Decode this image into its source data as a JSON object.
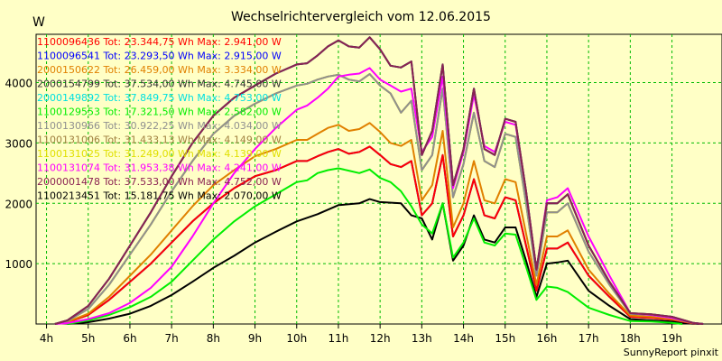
{
  "chart_data": {
    "type": "line",
    "title": "Wechselrichtervergleich vom 12.06.2015",
    "ylabel": "W",
    "credit": "SunnyReport pinxit",
    "x_ticks": [
      "4h",
      "5h",
      "6h",
      "7h",
      "8h",
      "9h",
      "10h",
      "11h",
      "12h",
      "13h",
      "14h",
      "15h",
      "16h",
      "17h",
      "18h",
      "19h"
    ],
    "y_ticks": [
      1000,
      2000,
      3000,
      4000
    ],
    "xlim": [
      3.75,
      20.2
    ],
    "ylim": [
      0,
      4800
    ],
    "grid": true,
    "legend_position": "top-left",
    "series": [
      {
        "name": "1100096436 Tot: 23.344,75 Wh Max: 2.941,00 W",
        "color": "#ff0000",
        "group": "b"
      },
      {
        "name": "1100096541 Tot: 23.293,50 Wh Max: 2.915,00 W",
        "color": "#0000ff",
        "group": "b"
      },
      {
        "name": "2000150622 Tot: 26.459,00 Wh Max: 3.334,00 W",
        "color": "#e08000",
        "group": "c"
      },
      {
        "name": "2000154799 Tot: 37.534,00 Wh Max: 4.745,00 W",
        "color": "#333333",
        "group": "a"
      },
      {
        "name": "2000149892 Tot: 37.849,75 Wh Max: 4.753,00 W",
        "color": "#00e0e0",
        "group": "a"
      },
      {
        "name": "1100129553 Tot: 17.321,50 Wh Max: 2.582,00 W",
        "color": "#00ee00",
        "group": "e"
      },
      {
        "name": "1100130966 Tot: 30.922,25 Wh Max: 4.034,00 W",
        "color": "#909090",
        "group": "f"
      },
      {
        "name": "1100131006 Tot: 31.433,13 Wh Max: 4.149,00 W",
        "color": "#a08040",
        "group": "f"
      },
      {
        "name": "1100131025 Tot: 31.249,00 Wh Max: 4.139,00 W",
        "color": "#e0e000",
        "group": "f"
      },
      {
        "name": "1100131074 Tot: 31.953,38 Wh Max: 4.241,00 W",
        "color": "#ff00ff",
        "group": "g"
      },
      {
        "name": "2000001478 Tot: 37.533,00 Wh Max: 4.752,00 W",
        "color": "#8b2252",
        "group": "a"
      },
      {
        "name": "1100213451 Tot: 15.181,75 Wh Max: 2.070,00 W",
        "color": "#000000",
        "group": "d"
      }
    ],
    "profiles": {
      "a": [
        [
          4.2,
          0
        ],
        [
          4.5,
          60
        ],
        [
          5,
          300
        ],
        [
          5.5,
          750
        ],
        [
          6,
          1300
        ],
        [
          6.5,
          1850
        ],
        [
          7,
          2450
        ],
        [
          7.5,
          3000
        ],
        [
          8,
          3450
        ],
        [
          8.5,
          3750
        ],
        [
          9,
          3950
        ],
        [
          9.5,
          4150
        ],
        [
          10,
          4300
        ],
        [
          10.25,
          4320
        ],
        [
          10.5,
          4450
        ],
        [
          10.75,
          4600
        ],
        [
          11,
          4700
        ],
        [
          11.25,
          4600
        ],
        [
          11.5,
          4580
        ],
        [
          11.75,
          4750
        ],
        [
          12,
          4550
        ],
        [
          12.25,
          4280
        ],
        [
          12.5,
          4250
        ],
        [
          12.75,
          4350
        ],
        [
          13,
          2800
        ],
        [
          13.25,
          3200
        ],
        [
          13.5,
          4300
        ],
        [
          13.75,
          2300
        ],
        [
          14,
          2900
        ],
        [
          14.25,
          3900
        ],
        [
          14.5,
          2900
        ],
        [
          14.75,
          2800
        ],
        [
          15,
          3400
        ],
        [
          15.25,
          3350
        ],
        [
          15.5,
          2200
        ],
        [
          15.75,
          900
        ],
        [
          16,
          2000
        ],
        [
          16.25,
          2000
        ],
        [
          16.5,
          2150
        ],
        [
          17,
          1300
        ],
        [
          17.5,
          700
        ],
        [
          18,
          180
        ],
        [
          18.5,
          160
        ],
        [
          19,
          120
        ],
        [
          19.5,
          20
        ],
        [
          19.75,
          0
        ]
      ],
      "b": [
        [
          4.2,
          0
        ],
        [
          4.5,
          30
        ],
        [
          5,
          150
        ],
        [
          5.5,
          400
        ],
        [
          6,
          700
        ],
        [
          6.5,
          1000
        ],
        [
          7,
          1350
        ],
        [
          7.5,
          1700
        ],
        [
          8,
          2000
        ],
        [
          8.5,
          2250
        ],
        [
          9,
          2450
        ],
        [
          9.5,
          2550
        ],
        [
          10,
          2700
        ],
        [
          10.25,
          2700
        ],
        [
          10.5,
          2780
        ],
        [
          10.75,
          2850
        ],
        [
          11,
          2900
        ],
        [
          11.25,
          2820
        ],
        [
          11.5,
          2850
        ],
        [
          11.75,
          2940
        ],
        [
          12,
          2800
        ],
        [
          12.25,
          2650
        ],
        [
          12.5,
          2600
        ],
        [
          12.75,
          2700
        ],
        [
          13,
          1800
        ],
        [
          13.25,
          2000
        ],
        [
          13.5,
          2800
        ],
        [
          13.75,
          1450
        ],
        [
          14,
          1800
        ],
        [
          14.25,
          2400
        ],
        [
          14.5,
          1800
        ],
        [
          14.75,
          1750
        ],
        [
          15,
          2100
        ],
        [
          15.25,
          2050
        ],
        [
          15.5,
          1300
        ],
        [
          15.75,
          550
        ],
        [
          16,
          1250
        ],
        [
          16.25,
          1250
        ],
        [
          16.5,
          1350
        ],
        [
          17,
          800
        ],
        [
          17.5,
          450
        ],
        [
          18,
          120
        ],
        [
          18.5,
          100
        ],
        [
          19,
          70
        ],
        [
          19.5,
          10
        ],
        [
          19.75,
          0
        ]
      ],
      "c": [
        [
          4.2,
          0
        ],
        [
          4.5,
          35
        ],
        [
          5,
          170
        ],
        [
          5.5,
          450
        ],
        [
          6,
          800
        ],
        [
          6.5,
          1150
        ],
        [
          7,
          1550
        ],
        [
          7.5,
          1950
        ],
        [
          8,
          2300
        ],
        [
          8.5,
          2550
        ],
        [
          9,
          2780
        ],
        [
          9.5,
          2900
        ],
        [
          10,
          3050
        ],
        [
          10.25,
          3050
        ],
        [
          10.5,
          3150
        ],
        [
          10.75,
          3250
        ],
        [
          11,
          3300
        ],
        [
          11.25,
          3200
        ],
        [
          11.5,
          3230
        ],
        [
          11.75,
          3330
        ],
        [
          12,
          3180
        ],
        [
          12.25,
          3000
        ],
        [
          12.5,
          2950
        ],
        [
          12.75,
          3050
        ],
        [
          13,
          2050
        ],
        [
          13.25,
          2300
        ],
        [
          13.5,
          3200
        ],
        [
          13.75,
          1600
        ],
        [
          14,
          2000
        ],
        [
          14.25,
          2700
        ],
        [
          14.5,
          2050
        ],
        [
          14.75,
          2000
        ],
        [
          15,
          2400
        ],
        [
          15.25,
          2350
        ],
        [
          15.5,
          1500
        ],
        [
          15.75,
          650
        ],
        [
          16,
          1450
        ],
        [
          16.25,
          1450
        ],
        [
          16.5,
          1550
        ],
        [
          17,
          900
        ],
        [
          17.5,
          500
        ],
        [
          18,
          140
        ],
        [
          18.5,
          120
        ],
        [
          19,
          80
        ],
        [
          19.5,
          15
        ],
        [
          19.75,
          0
        ]
      ],
      "d": [
        [
          4.5,
          0
        ],
        [
          5,
          30
        ],
        [
          5.5,
          90
        ],
        [
          6,
          170
        ],
        [
          6.5,
          300
        ],
        [
          7,
          480
        ],
        [
          7.5,
          700
        ],
        [
          8,
          930
        ],
        [
          8.5,
          1130
        ],
        [
          9,
          1350
        ],
        [
          9.5,
          1530
        ],
        [
          10,
          1700
        ],
        [
          10.5,
          1820
        ],
        [
          11,
          1970
        ],
        [
          11.5,
          2000
        ],
        [
          11.75,
          2070
        ],
        [
          12,
          2020
        ],
        [
          12.5,
          2000
        ],
        [
          12.75,
          1800
        ],
        [
          13,
          1750
        ],
        [
          13.25,
          1400
        ],
        [
          13.5,
          2000
        ],
        [
          13.75,
          1050
        ],
        [
          14,
          1300
        ],
        [
          14.25,
          1800
        ],
        [
          14.5,
          1400
        ],
        [
          14.75,
          1350
        ],
        [
          15,
          1600
        ],
        [
          15.25,
          1600
        ],
        [
          15.5,
          1050
        ],
        [
          15.75,
          450
        ],
        [
          16,
          1000
        ],
        [
          16.25,
          1020
        ],
        [
          16.5,
          1050
        ],
        [
          17,
          550
        ],
        [
          17.5,
          300
        ],
        [
          18,
          80
        ],
        [
          18.5,
          60
        ],
        [
          19,
          40
        ],
        [
          19.5,
          5
        ],
        [
          19.75,
          0
        ]
      ],
      "e": [
        [
          4.5,
          0
        ],
        [
          5,
          60
        ],
        [
          5.5,
          150
        ],
        [
          6,
          280
        ],
        [
          6.5,
          450
        ],
        [
          7,
          700
        ],
        [
          7.5,
          1050
        ],
        [
          8,
          1400
        ],
        [
          8.5,
          1700
        ],
        [
          9,
          1950
        ],
        [
          9.5,
          2150
        ],
        [
          10,
          2350
        ],
        [
          10.25,
          2380
        ],
        [
          10.5,
          2500
        ],
        [
          10.75,
          2550
        ],
        [
          11,
          2580
        ],
        [
          11.25,
          2540
        ],
        [
          11.5,
          2500
        ],
        [
          11.75,
          2560
        ],
        [
          12,
          2420
        ],
        [
          12.25,
          2350
        ],
        [
          12.5,
          2200
        ],
        [
          12.75,
          1950
        ],
        [
          13,
          1650
        ],
        [
          13.25,
          1500
        ],
        [
          13.5,
          2000
        ],
        [
          13.75,
          1100
        ],
        [
          14,
          1350
        ],
        [
          14.25,
          1750
        ],
        [
          14.5,
          1350
        ],
        [
          14.75,
          1300
        ],
        [
          15,
          1500
        ],
        [
          15.25,
          1480
        ],
        [
          15.5,
          950
        ],
        [
          15.75,
          400
        ],
        [
          16,
          620
        ],
        [
          16.25,
          600
        ],
        [
          16.5,
          530
        ],
        [
          17,
          270
        ],
        [
          17.5,
          150
        ],
        [
          18,
          50
        ],
        [
          18.5,
          40
        ],
        [
          19,
          20
        ],
        [
          19.25,
          0
        ]
      ],
      "f": [
        [
          4.2,
          0
        ],
        [
          4.5,
          50
        ],
        [
          5,
          250
        ],
        [
          5.5,
          650
        ],
        [
          6,
          1150
        ],
        [
          6.5,
          1650
        ],
        [
          7,
          2200
        ],
        [
          7.5,
          2700
        ],
        [
          8,
          3150
        ],
        [
          8.5,
          3450
        ],
        [
          9,
          3650
        ],
        [
          9.5,
          3820
        ],
        [
          10,
          3950
        ],
        [
          10.25,
          3980
        ],
        [
          10.5,
          4050
        ],
        [
          10.75,
          4100
        ],
        [
          11,
          4130
        ],
        [
          11.25,
          4050
        ],
        [
          11.5,
          4020
        ],
        [
          11.75,
          4140
        ],
        [
          12,
          3950
        ],
        [
          12.25,
          3820
        ],
        [
          12.5,
          3500
        ],
        [
          12.75,
          3700
        ],
        [
          13,
          2550
        ],
        [
          13.25,
          2800
        ],
        [
          13.5,
          3900
        ],
        [
          13.75,
          2100
        ],
        [
          14,
          2650
        ],
        [
          14.25,
          3500
        ],
        [
          14.5,
          2700
        ],
        [
          14.75,
          2600
        ],
        [
          15,
          3150
        ],
        [
          15.25,
          3100
        ],
        [
          15.5,
          2000
        ],
        [
          15.75,
          800
        ],
        [
          16,
          1850
        ],
        [
          16.25,
          1850
        ],
        [
          16.5,
          2000
        ],
        [
          17,
          1200
        ],
        [
          17.5,
          650
        ],
        [
          18,
          170
        ],
        [
          18.5,
          150
        ],
        [
          19,
          100
        ],
        [
          19.5,
          20
        ],
        [
          19.75,
          0
        ]
      ],
      "g": [
        [
          4.2,
          0
        ],
        [
          4.5,
          15
        ],
        [
          5,
          80
        ],
        [
          5.5,
          180
        ],
        [
          6,
          350
        ],
        [
          6.5,
          600
        ],
        [
          7,
          950
        ],
        [
          7.5,
          1450
        ],
        [
          8,
          2000
        ],
        [
          8.5,
          2500
        ],
        [
          9,
          2900
        ],
        [
          9.5,
          3250
        ],
        [
          10,
          3550
        ],
        [
          10.25,
          3620
        ],
        [
          10.5,
          3750
        ],
        [
          10.75,
          3900
        ],
        [
          11,
          4100
        ],
        [
          11.25,
          4130
        ],
        [
          11.5,
          4150
        ],
        [
          11.75,
          4240
        ],
        [
          12,
          4050
        ],
        [
          12.25,
          3950
        ],
        [
          12.5,
          3850
        ],
        [
          12.75,
          3900
        ],
        [
          13,
          2850
        ],
        [
          13.25,
          3100
        ],
        [
          13.5,
          4100
        ],
        [
          13.75,
          2250
        ],
        [
          14,
          2850
        ],
        [
          14.25,
          3800
        ],
        [
          14.5,
          2950
        ],
        [
          14.75,
          2850
        ],
        [
          15,
          3350
        ],
        [
          15.25,
          3300
        ],
        [
          15.5,
          2200
        ],
        [
          15.75,
          900
        ],
        [
          16,
          2050
        ],
        [
          16.25,
          2100
        ],
        [
          16.5,
          2250
        ],
        [
          17,
          1450
        ],
        [
          17.5,
          800
        ],
        [
          18,
          180
        ],
        [
          18.5,
          150
        ],
        [
          19,
          100
        ],
        [
          19.5,
          20
        ],
        [
          19.75,
          0
        ]
      ]
    }
  }
}
